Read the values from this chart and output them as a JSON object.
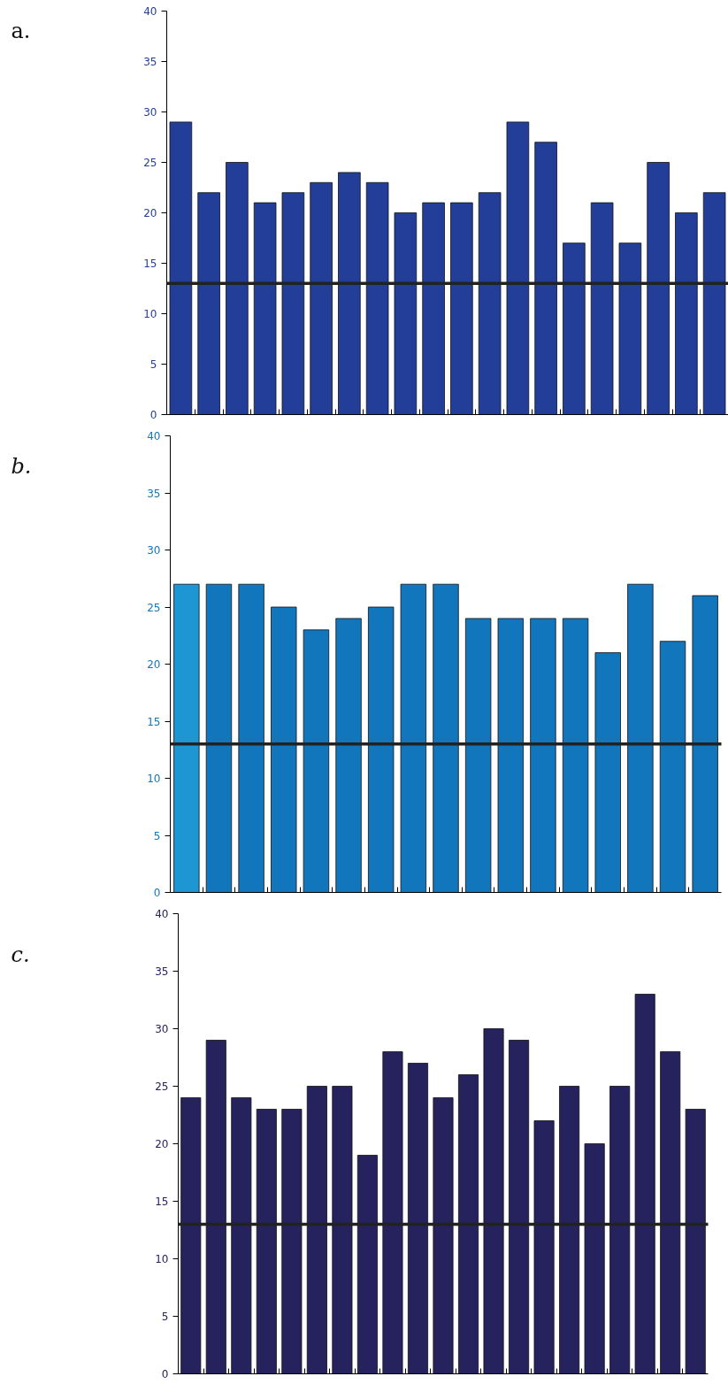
{
  "chart_data": [
    {
      "type": "bar",
      "title": "a.",
      "categories": [
        null,
        null,
        null,
        null,
        null,
        null,
        null,
        null,
        null,
        null,
        null,
        null,
        null,
        null,
        null,
        null,
        null,
        null,
        null,
        null
      ],
      "values": [
        29,
        22,
        25,
        21,
        22,
        23,
        24,
        23,
        20,
        21,
        21,
        22,
        29,
        27,
        17,
        21,
        17,
        25,
        20,
        22
      ],
      "color": "#233e99",
      "ylim": [
        0,
        40
      ],
      "yticks": [
        0,
        5,
        10,
        15,
        20,
        25,
        30,
        35,
        40
      ],
      "tick_labels": "y",
      "grid": false,
      "ref_lines": [
        {
          "axis": "y",
          "value": 13,
          "color": "#222222"
        }
      ]
    },
    {
      "type": "bar",
      "title": "b.",
      "categories": [
        null,
        null,
        null,
        null,
        null,
        null,
        null,
        null,
        null,
        null,
        null,
        null,
        null,
        null,
        null,
        null,
        null
      ],
      "values": [
        27,
        27,
        27,
        25,
        23,
        24,
        25,
        27,
        27,
        24,
        24,
        24,
        24,
        21,
        27,
        22,
        26
      ],
      "colors": [
        "#1e96d4",
        "#1276bc",
        "#1276bc",
        "#1276bc",
        "#1276bc",
        "#1276bc",
        "#1276bc",
        "#1276bc",
        "#1276bc",
        "#1276bc",
        "#1276bc",
        "#1276bc",
        "#1276bc",
        "#1276bc",
        "#1276bc",
        "#1276bc",
        "#1276bc"
      ],
      "ylim": [
        0,
        40
      ],
      "yticks": [
        0,
        5,
        10,
        15,
        20,
        25,
        30,
        35,
        40
      ],
      "tick_labels": "y",
      "grid": false,
      "ref_lines": [
        {
          "axis": "y",
          "value": 13,
          "color": "#222222"
        }
      ]
    },
    {
      "type": "bar",
      "title": "c.",
      "categories": [
        null,
        null,
        null,
        null,
        null,
        null,
        null,
        null,
        null,
        null,
        null,
        null,
        null,
        null,
        null,
        null,
        null,
        null,
        null,
        null,
        null
      ],
      "values": [
        24,
        29,
        24,
        23,
        23,
        25,
        25,
        19,
        28,
        27,
        24,
        26,
        30,
        29,
        22,
        25,
        20,
        25,
        33,
        28,
        23
      ],
      "color": "#25225e",
      "ylim": [
        0,
        40
      ],
      "yticks": [
        0,
        5,
        10,
        15,
        20,
        25,
        30,
        35,
        40
      ],
      "tick_labels": "y",
      "grid": false,
      "ref_lines": [
        {
          "axis": "y",
          "value": 13,
          "color": "#222222"
        }
      ]
    }
  ]
}
